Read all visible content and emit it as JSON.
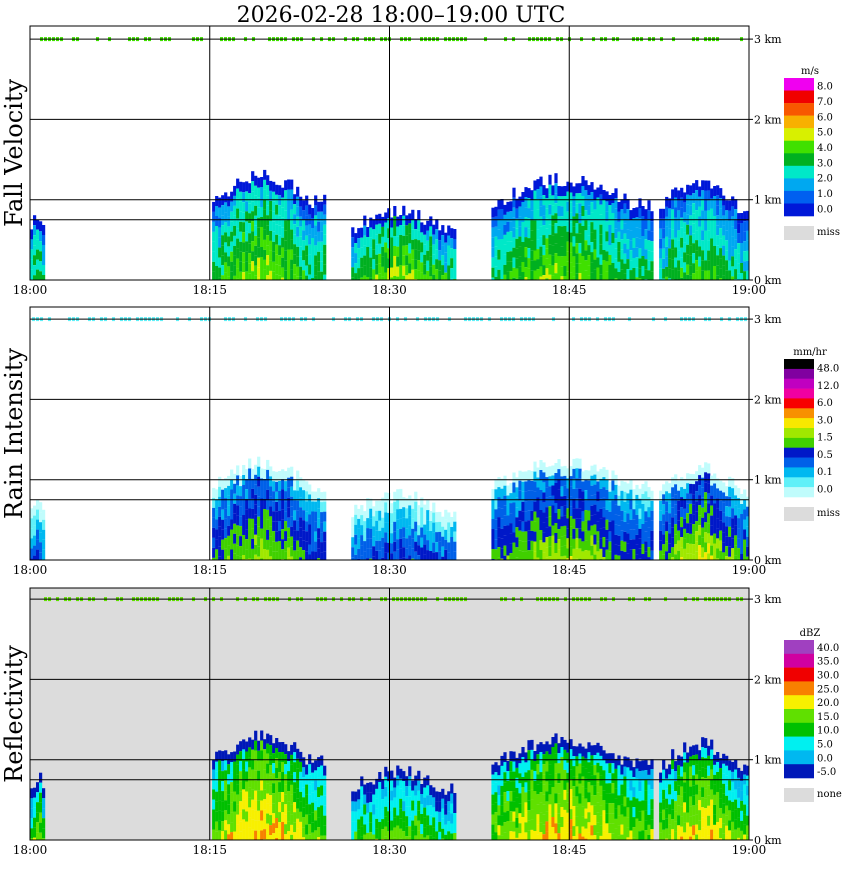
{
  "title": "2026-02-28   18:00–19:00 UTC",
  "time_ticks": [
    "18:00",
    "18:15",
    "18:30",
    "18:45",
    "19:00"
  ],
  "height_ticks": [
    "0 km",
    "1 km",
    "2 km",
    "3 km"
  ],
  "colors": {
    "missing_gray": "#dcdcdc",
    "fv_scale": [
      "#0018d8",
      "#0060f0",
      "#00a8f0",
      "#00e8c8",
      "#00b020",
      "#40e000",
      "#d8f000",
      "#f8b000",
      "#f85800",
      "#f00000",
      "#f000f0"
    ],
    "ri_scale": [
      "#c0fcfc",
      "#60f0f8",
      "#00b8f0",
      "#0060e8",
      "#0018c8",
      "#40d000",
      "#a0e800",
      "#f8e800",
      "#f89000",
      "#f80000",
      "#f000a0",
      "#c000c0",
      "#8000a0",
      "#000000"
    ],
    "dbz_scale": [
      "#0018b8",
      "#00b8f0",
      "#00f0f0",
      "#00c000",
      "#60e000",
      "#f8f000",
      "#f88000",
      "#f00000",
      "#d000a0",
      "#a040c0"
    ]
  },
  "chart_data": [
    {
      "type": "heatmap",
      "id": "fall_velocity",
      "ylabel": "Fall Velocity",
      "xlabel": "",
      "xlim": [
        "18:00",
        "19:00"
      ],
      "ylim_km": [
        0,
        3.2
      ],
      "grid": true,
      "legend": {
        "unit": "m/s",
        "labels": [
          "8.0",
          "7.0",
          "6.0",
          "5.0",
          "4.0",
          "3.0",
          "2.0",
          "1.0",
          "0.0"
        ],
        "missing_label": "miss"
      },
      "echo_cells": [
        {
          "start_min": 0.0,
          "end_min": 1.2,
          "top_km": 0.8,
          "peak": 0.35
        },
        {
          "start_min": 15.2,
          "end_min": 24.5,
          "top_km": 1.3,
          "peak": 0.55
        },
        {
          "start_min": 26.8,
          "end_min": 35.5,
          "top_km": 0.85,
          "peak": 0.6
        },
        {
          "start_min": 38.5,
          "end_min": 52.0,
          "top_km": 1.25,
          "peak": 0.5
        },
        {
          "start_min": 52.5,
          "end_min": 60.0,
          "top_km": 1.2,
          "peak": 0.35
        }
      ]
    },
    {
      "type": "heatmap",
      "id": "rain_intensity",
      "ylabel": "Rain Intensity",
      "xlabel": "",
      "xlim": [
        "18:00",
        "19:00"
      ],
      "ylim_km": [
        0,
        3.2
      ],
      "grid": true,
      "legend": {
        "unit": "mm/hr",
        "labels": [
          "48.0",
          "12.0",
          "6.0",
          "3.0",
          "1.5",
          "0.5",
          "0.1",
          "0.0"
        ],
        "missing_label": "miss"
      },
      "echo_cells": [
        {
          "start_min": 0.0,
          "end_min": 1.2,
          "top_km": 0.8,
          "peak": 0.1
        },
        {
          "start_min": 15.2,
          "end_min": 24.5,
          "top_km": 1.2,
          "peak": 0.45
        },
        {
          "start_min": 26.8,
          "end_min": 35.5,
          "top_km": 0.8,
          "peak": 0.1
        },
        {
          "start_min": 38.5,
          "end_min": 52.0,
          "top_km": 1.2,
          "peak": 0.45
        },
        {
          "start_min": 52.5,
          "end_min": 60.0,
          "top_km": 1.15,
          "peak": 0.55
        }
      ]
    },
    {
      "type": "heatmap",
      "id": "reflectivity",
      "ylabel": "Reflectivity",
      "xlabel": "",
      "xlim": [
        "18:00",
        "19:00"
      ],
      "ylim_km": [
        0,
        3.2
      ],
      "grid": true,
      "legend": {
        "unit": "dBZ",
        "labels": [
          "40.0",
          "35.0",
          "30.0",
          "25.0",
          "20.0",
          "15.0",
          "10.0",
          "5.0",
          "0.0",
          "-5.0"
        ],
        "missing_label": "none"
      },
      "echo_cells": [
        {
          "start_min": 0.0,
          "end_min": 1.2,
          "top_km": 0.8,
          "peak": 0.3
        },
        {
          "start_min": 15.2,
          "end_min": 24.5,
          "top_km": 1.3,
          "peak": 0.6
        },
        {
          "start_min": 26.8,
          "end_min": 35.5,
          "top_km": 0.85,
          "peak": 0.2
        },
        {
          "start_min": 38.5,
          "end_min": 52.0,
          "top_km": 1.25,
          "peak": 0.55
        },
        {
          "start_min": 52.5,
          "end_min": 60.0,
          "top_km": 1.2,
          "peak": 0.5
        }
      ]
    }
  ]
}
